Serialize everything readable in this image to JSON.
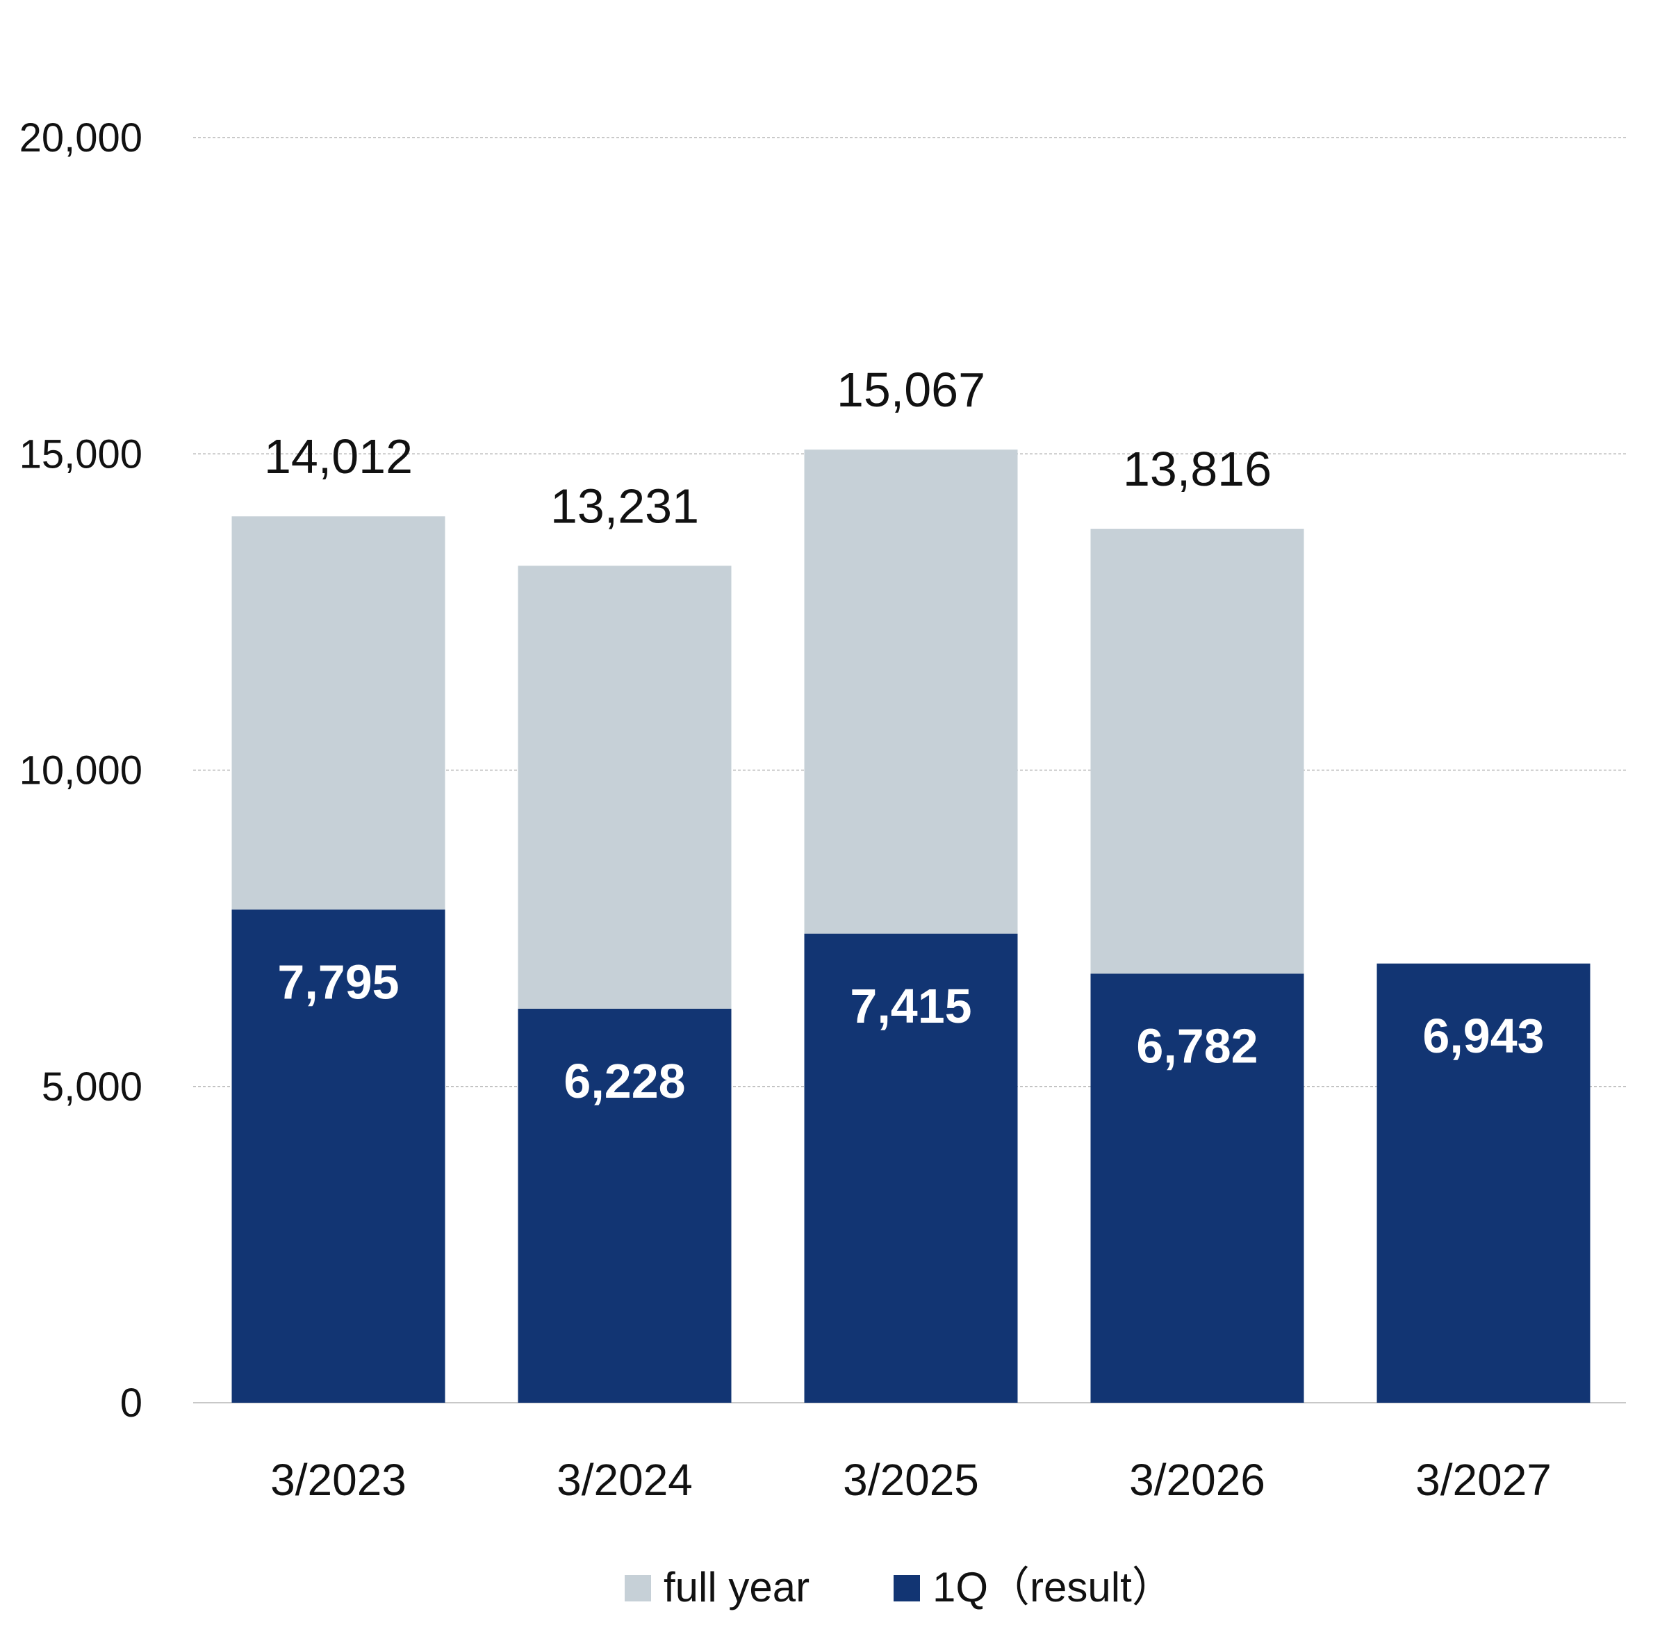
{
  "chart_data": {
    "type": "bar",
    "stacked": false,
    "overlap": true,
    "categories": [
      "3/2023",
      "3/2024",
      "3/2025",
      "3/2026",
      "3/2027"
    ],
    "series": [
      {
        "name": "full year",
        "values": [
          14012,
          13231,
          15067,
          13816,
          null
        ],
        "labels": [
          "14,012",
          "13,231",
          "15,067",
          "13,816",
          ""
        ],
        "color": "#c6d0d7"
      },
      {
        "name": "1Q（result）",
        "values": [
          7795,
          6228,
          7415,
          6782,
          6943
        ],
        "labels": [
          "7,795",
          "6,228",
          "7,415",
          "6,782",
          "6,943"
        ],
        "color": "#123573"
      }
    ],
    "ylim": [
      0,
      20000
    ],
    "yticks": [
      0,
      5000,
      10000,
      15000,
      20000
    ],
    "ytick_labels": [
      "0",
      "5,000",
      "10,000",
      "15,000",
      "20,000"
    ],
    "grid": true,
    "legend_position": "bottom"
  }
}
